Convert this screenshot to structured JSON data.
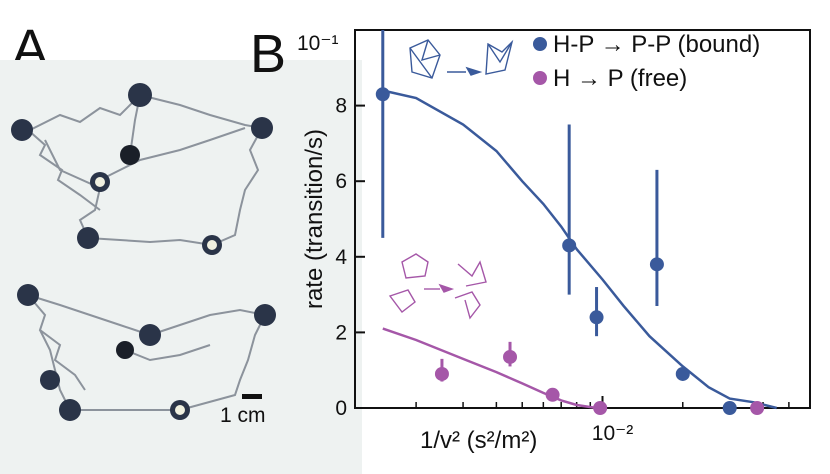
{
  "panels": {
    "a_label": "A",
    "b_label": "B"
  },
  "photo": {
    "scale_bar_label": "1 cm"
  },
  "colors": {
    "bound": "#3a5a9b",
    "free": "#a557a8",
    "axis": "#111111"
  },
  "chart_data": {
    "type": "scatter",
    "title": "",
    "xlabel": "1/v² (s²/m²)",
    "ylabel": "rate (transition/s)",
    "xscale": "log",
    "x_tick_labels": [
      "10⁻²"
    ],
    "y_multiplier_label": "10⁻¹",
    "ylim": [
      0,
      10
    ],
    "y_ticks": [
      0,
      2,
      4,
      6,
      8
    ],
    "legend": {
      "placement": "top-right"
    },
    "series": [
      {
        "name": "H-P → P-P (bound)",
        "color": "#3a5a9b",
        "points": [
          {
            "x": 0.0015,
            "y": 8.3,
            "err_low": 4.5,
            "err_high": 10.5
          },
          {
            "x": 0.0075,
            "y": 4.3,
            "err_low": 3.0,
            "err_high": 7.5
          },
          {
            "x": 0.0095,
            "y": 2.4,
            "err_low": 1.9,
            "err_high": 3.2
          },
          {
            "x": 0.016,
            "y": 3.8,
            "err_low": 2.7,
            "err_high": 6.3
          },
          {
            "x": 0.02,
            "y": 0.9,
            "err_low": 0.9,
            "err_high": 0.9
          },
          {
            "x": 0.03,
            "y": 0.0,
            "err_low": 0.0,
            "err_high": 0.0
          }
        ],
        "fit": [
          [
            0.0015,
            8.4
          ],
          [
            0.002,
            8.2
          ],
          [
            0.003,
            7.5
          ],
          [
            0.004,
            6.8
          ],
          [
            0.005,
            6.0
          ],
          [
            0.006,
            5.4
          ],
          [
            0.007,
            4.8
          ],
          [
            0.008,
            4.2
          ],
          [
            0.01,
            3.4
          ],
          [
            0.012,
            2.7
          ],
          [
            0.015,
            1.9
          ],
          [
            0.02,
            1.1
          ],
          [
            0.025,
            0.55
          ],
          [
            0.03,
            0.25
          ],
          [
            0.037,
            0.15
          ],
          [
            0.045,
            0.0
          ]
        ]
      },
      {
        "name": "H → P (free)",
        "color": "#a557a8",
        "points": [
          {
            "x": 0.0025,
            "y": 0.9,
            "err_low": 0.7,
            "err_high": 1.3
          },
          {
            "x": 0.0045,
            "y": 1.35,
            "err_low": 1.1,
            "err_high": 1.75
          },
          {
            "x": 0.0065,
            "y": 0.35,
            "err_low": 0.35,
            "err_high": 0.35
          },
          {
            "x": 0.0098,
            "y": 0.0,
            "err_low": 0.0,
            "err_high": 0.0
          },
          {
            "x": 0.038,
            "y": 0.0,
            "err_low": 0.0,
            "err_high": 0.0
          }
        ],
        "fit": [
          [
            0.0015,
            2.1
          ],
          [
            0.002,
            1.8
          ],
          [
            0.003,
            1.3
          ],
          [
            0.004,
            0.95
          ],
          [
            0.005,
            0.65
          ],
          [
            0.006,
            0.4
          ],
          [
            0.007,
            0.2
          ],
          [
            0.008,
            0.08
          ],
          [
            0.0095,
            0.0
          ]
        ]
      }
    ]
  }
}
